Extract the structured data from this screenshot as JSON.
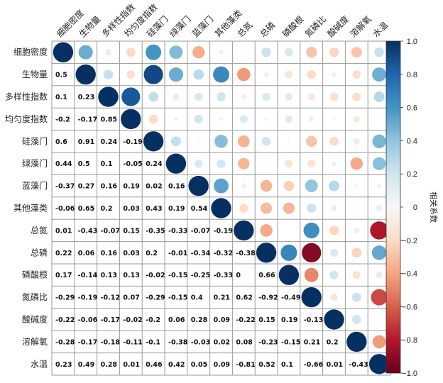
{
  "chart_data": {
    "type": "heatmap",
    "subtype": "correlation-matrix-mixed",
    "variables": [
      "细胞密度",
      "生物量",
      "多样性指数",
      "均匀度指数",
      "硅藻门",
      "绿藻门",
      "蓝藻门",
      "其他藻类",
      "总氮",
      "总磷",
      "磷酸根",
      "氮磷比",
      "酸碱度",
      "溶解氧",
      "水温"
    ],
    "lower_display": "number",
    "upper_display": "circle",
    "matrix": [
      [
        1,
        0.5,
        0.1,
        -0.2,
        0.6,
        0.44,
        -0.37,
        -0.06,
        0.01,
        0.22,
        0.17,
        -0.29,
        -0.22,
        -0.28,
        0.23
      ],
      [
        0.5,
        1,
        0.23,
        -0.17,
        0.91,
        0.5,
        0.27,
        0.65,
        -0.43,
        0.06,
        -0.14,
        -0.19,
        -0.06,
        -0.17,
        0.49
      ],
      [
        0.1,
        0.23,
        1,
        0.85,
        0.24,
        0.1,
        0.16,
        0.2,
        -0.07,
        0.16,
        0.13,
        -0.12,
        -0.17,
        -0.18,
        0.28
      ],
      [
        -0.2,
        -0.17,
        0.85,
        1,
        -0.19,
        -0.05,
        0.19,
        0.03,
        0.15,
        0.03,
        0.13,
        0.07,
        -0.02,
        -0.11,
        0.01
      ],
      [
        0.6,
        0.91,
        0.24,
        -0.19,
        1,
        0.24,
        0.02,
        0.43,
        -0.35,
        0.2,
        -0.02,
        -0.29,
        -0.2,
        -0.1,
        0.46
      ],
      [
        0.44,
        0.5,
        0.1,
        -0.05,
        0.24,
        1,
        0.16,
        0.19,
        -0.33,
        -0.01,
        -0.15,
        -0.15,
        0.06,
        -0.38,
        0.42
      ],
      [
        -0.37,
        0.27,
        0.16,
        0.19,
        0.02,
        0.16,
        1,
        0.54,
        -0.07,
        -0.34,
        -0.25,
        0.4,
        0.28,
        -0.03,
        0.05
      ],
      [
        -0.06,
        0.65,
        0.2,
        0.03,
        0.43,
        0.19,
        0.54,
        1,
        -0.19,
        -0.32,
        -0.33,
        0.21,
        0.09,
        0.02,
        0.09
      ],
      [
        0.01,
        -0.43,
        -0.07,
        0.15,
        -0.35,
        -0.33,
        -0.07,
        -0.19,
        1,
        -0.38,
        0,
        0.62,
        -0.22,
        0.08,
        -0.81
      ],
      [
        0.22,
        0.06,
        0.16,
        0.03,
        0.2,
        -0.01,
        -0.34,
        -0.32,
        -0.38,
        1,
        0.66,
        -0.92,
        0.15,
        -0.23,
        0.52
      ],
      [
        0.17,
        -0.14,
        0.13,
        0.13,
        -0.02,
        -0.15,
        -0.25,
        -0.33,
        0,
        0.66,
        1,
        -0.49,
        0.19,
        -0.15,
        0.1
      ],
      [
        -0.29,
        -0.19,
        -0.12,
        0.07,
        -0.29,
        -0.15,
        0.4,
        0.21,
        0.62,
        -0.92,
        -0.49,
        1,
        -0.13,
        0.21,
        -0.66
      ],
      [
        -0.22,
        -0.06,
        -0.17,
        -0.02,
        -0.2,
        0.06,
        0.28,
        0.09,
        -0.22,
        0.15,
        0.19,
        -0.13,
        1,
        0.2,
        0.01
      ],
      [
        -0.28,
        -0.17,
        -0.18,
        -0.11,
        -0.1,
        -0.38,
        -0.03,
        0.02,
        0.08,
        -0.23,
        -0.15,
        0.21,
        0.2,
        1,
        -0.43
      ],
      [
        0.23,
        0.49,
        0.28,
        0.01,
        0.46,
        0.42,
        0.05,
        0.09,
        -0.81,
        0.52,
        0.1,
        -0.66,
        0.01,
        -0.43,
        1
      ]
    ],
    "colorbar": {
      "label": "相关系数",
      "range": [
        -1,
        1
      ],
      "ticks": [
        "1.0",
        "0.8",
        "0.6",
        "0.4",
        "0.2",
        "0",
        "−0.2",
        "−0.4",
        "−0.6",
        "−0.8",
        "−1.0"
      ],
      "colors": [
        "#67001f",
        "#b2182b",
        "#d6604d",
        "#f4a582",
        "#fddbc7",
        "#f7f7f7",
        "#d1e5f0",
        "#92c5de",
        "#4393c3",
        "#2166ac",
        "#053061"
      ]
    }
  }
}
